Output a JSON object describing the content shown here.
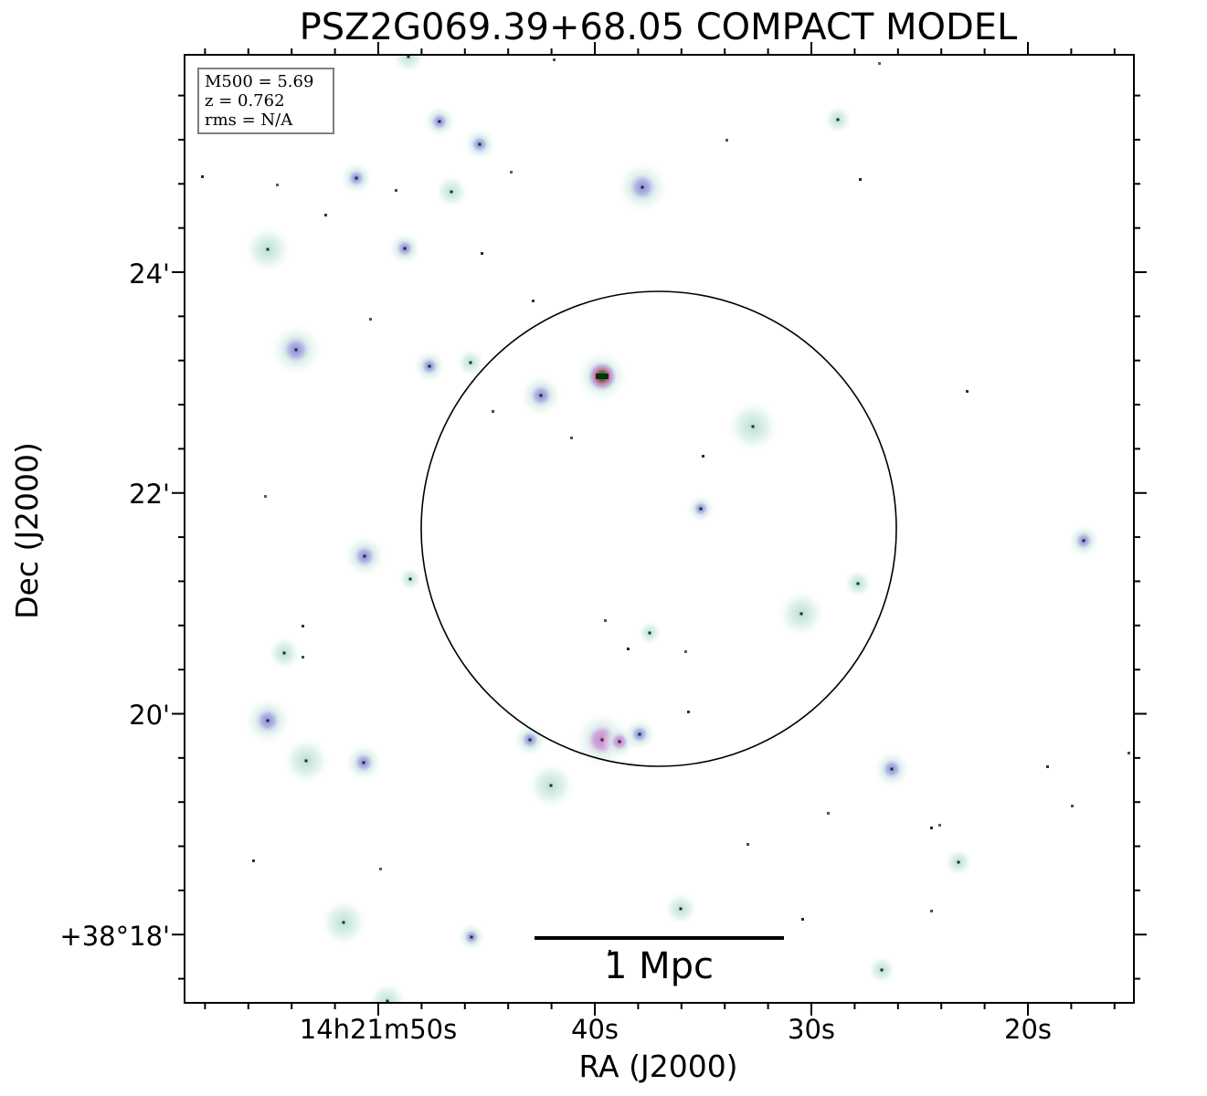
{
  "title": "PSZ2G069.39+68.05 COMPACT MODEL",
  "axes": {
    "xlabel": "RA (J2000)",
    "ylabel": "Dec (J2000)",
    "xticks": [
      "14h21m50s",
      "40s",
      "30s",
      "20s"
    ],
    "yticks": [
      "24'",
      "22'",
      "20'",
      "+38°18'"
    ]
  },
  "info_box": {
    "line1": "M500 = 5.69",
    "line2": "z = 0.762",
    "line3": "rms = N/A"
  },
  "scale_bar": {
    "label": "1 Mpc"
  },
  "colors": {
    "background": "#ffffff",
    "source_halo": "#c9e6dc",
    "source_core_blue": "#9a9fd8",
    "source_core_pink": "#d98fc4",
    "bright_source_core": "#1f5a2e",
    "circle": "#000000"
  }
}
